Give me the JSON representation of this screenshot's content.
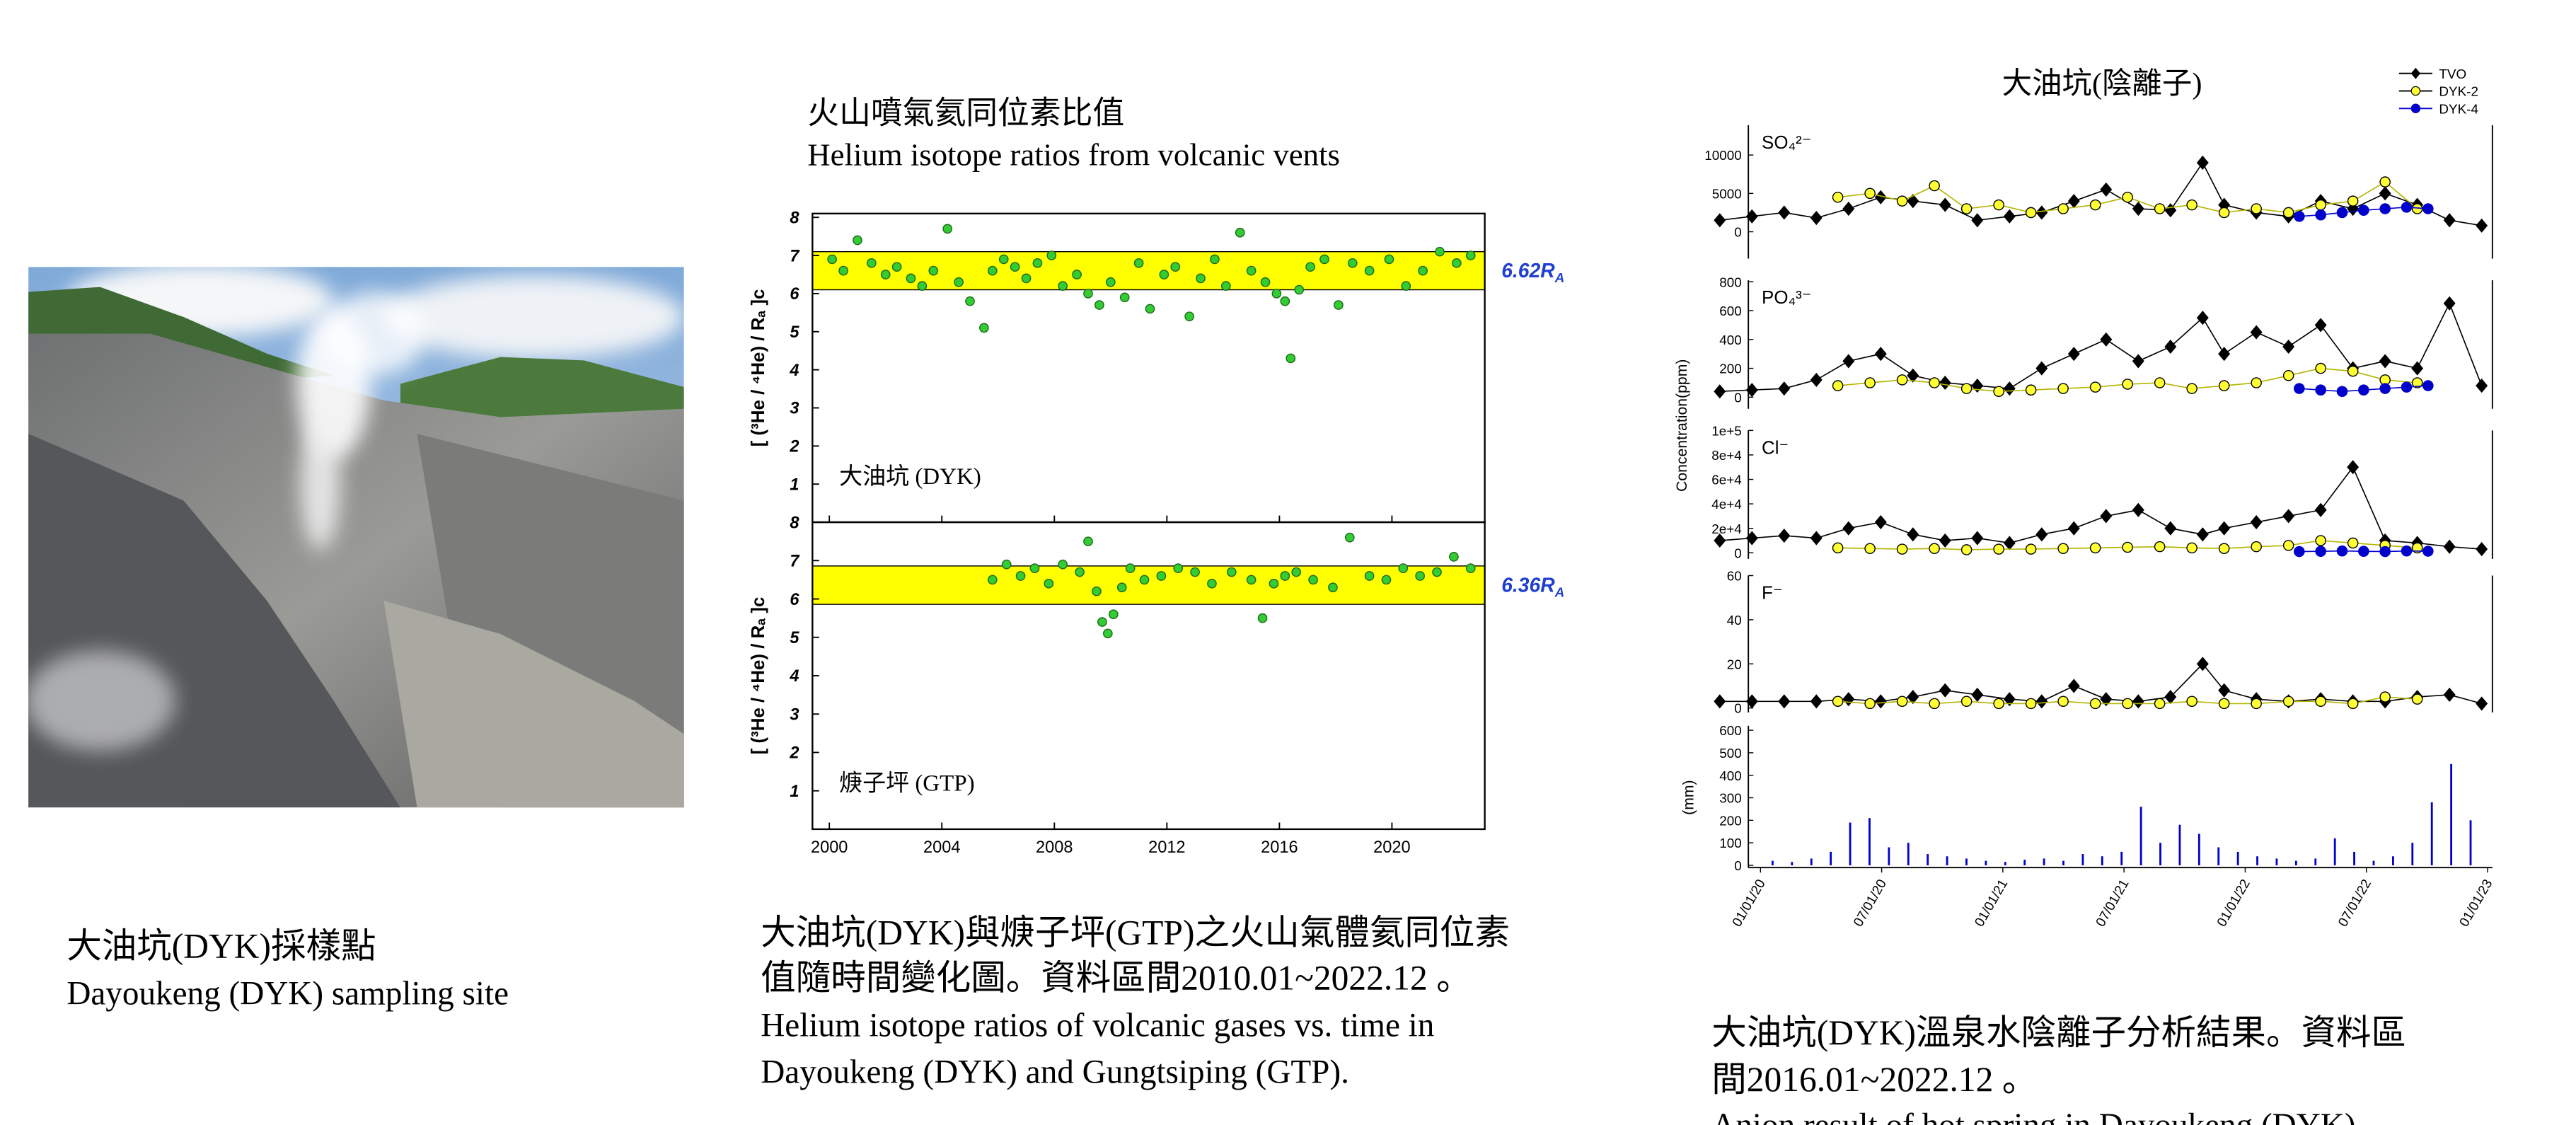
{
  "photo": {
    "caption": [
      "大油坑(DYK)採樣點",
      "Dayoukeng (DYK) sampling site"
    ]
  },
  "helium_caption": [
    "大油坑(DYK)與焿子坪(GTP)之火山氣體氦同位素",
    "值隨時間變化圖。資料區間2010.01~2022.12 。",
    "Helium isotope ratios of volcanic gases vs. time in",
    "Dayoukeng (DYK) and Gungtsiping (GTP)."
  ],
  "anion_caption": [
    "大油坑(DYK)溫泉水陰離子分析結果。資料區",
    "間2016.01~2022.12 。",
    "Anion result of hot spring in Dayoukeng (DYK) ."
  ],
  "chart_data": [
    {
      "type": "scatter",
      "title": "火山噴氣氦同位素比值",
      "subtitle": "Helium isotope ratios from volcanic vents",
      "ylabel": "[ (³He / ⁴He) / Rₐ ]c",
      "color": "#33cc33",
      "band_color": "#ffff00",
      "xlim": [
        1999.4,
        2023.3
      ],
      "xticks": [
        2000,
        2004,
        2008,
        2012,
        2016,
        2020
      ],
      "panels": [
        {
          "label": "大油坑 (DYK)",
          "ylim": [
            0,
            8.1
          ],
          "yticks": [
            1,
            2,
            3,
            4,
            5,
            6,
            7,
            8
          ],
          "band": [
            6.1,
            7.1
          ],
          "band_label": "6.62R",
          "band_label_sub": "A",
          "x": [
            2000.1,
            2000.5,
            2001.0,
            2001.5,
            2002.0,
            2002.4,
            2002.9,
            2003.3,
            2003.7,
            2004.2,
            2004.6,
            2005.0,
            2005.5,
            2005.8,
            2006.2,
            2006.6,
            2007.0,
            2007.4,
            2007.9,
            2008.3,
            2008.8,
            2009.2,
            2009.6,
            2010.0,
            2010.5,
            2011.0,
            2011.4,
            2011.9,
            2012.3,
            2012.8,
            2013.2,
            2013.7,
            2014.1,
            2014.6,
            2015.0,
            2015.5,
            2015.9,
            2016.2,
            2016.4,
            2016.7,
            2017.1,
            2017.6,
            2018.1,
            2018.6,
            2019.2,
            2019.9,
            2020.5,
            2021.1,
            2021.7,
            2022.3,
            2022.8
          ],
          "values": [
            6.9,
            6.6,
            7.4,
            6.8,
            6.5,
            6.7,
            6.4,
            6.2,
            6.6,
            7.7,
            6.3,
            5.8,
            5.1,
            6.6,
            6.9,
            6.7,
            6.4,
            6.8,
            7.0,
            6.2,
            6.5,
            6.0,
            5.7,
            6.3,
            5.9,
            6.8,
            5.6,
            6.5,
            6.7,
            5.4,
            6.4,
            6.9,
            6.2,
            7.6,
            6.6,
            6.3,
            6.0,
            5.8,
            4.3,
            6.1,
            6.7,
            6.9,
            5.7,
            6.8,
            6.6,
            6.9,
            6.2,
            6.6,
            7.1,
            6.8,
            7.0
          ]
        },
        {
          "label": "焿子坪 (GTP)",
          "ylim": [
            0,
            8
          ],
          "yticks": [
            1,
            2,
            3,
            4,
            5,
            6,
            7,
            8
          ],
          "band": [
            5.86,
            6.86
          ],
          "band_label": "6.36R",
          "band_label_sub": "A",
          "x": [
            2005.8,
            2006.3,
            2006.8,
            2007.3,
            2007.8,
            2008.3,
            2008.9,
            2009.2,
            2009.5,
            2009.7,
            2009.9,
            2010.1,
            2010.4,
            2010.7,
            2011.2,
            2011.8,
            2012.4,
            2013.0,
            2013.6,
            2014.3,
            2015.0,
            2015.4,
            2015.8,
            2016.2,
            2016.6,
            2017.2,
            2017.9,
            2018.5,
            2019.2,
            2019.8,
            2020.4,
            2021.0,
            2021.6,
            2022.2,
            2022.8
          ],
          "values": [
            6.5,
            6.9,
            6.6,
            6.8,
            6.4,
            6.9,
            6.7,
            7.5,
            6.2,
            5.4,
            5.1,
            5.6,
            6.3,
            6.8,
            6.5,
            6.6,
            6.8,
            6.7,
            6.4,
            6.7,
            6.5,
            5.5,
            6.4,
            6.6,
            6.7,
            6.5,
            6.3,
            7.6,
            6.6,
            6.5,
            6.8,
            6.6,
            6.7,
            7.1,
            6.8
          ]
        }
      ]
    },
    {
      "type": "scatter",
      "title": "大油坑(陰離子)",
      "ylabel": "Concentration(ppm)",
      "xlim": [
        2015.6,
        2023.0
      ],
      "series": [
        {
          "name": "TVO",
          "color": "#000000",
          "marker": "diamond"
        },
        {
          "name": "DYK-2",
          "color": "#ffff33",
          "marker": "circle"
        },
        {
          "name": "DYK-4",
          "color": "#0000cc",
          "marker": "circle"
        }
      ],
      "panels": [
        {
          "label": "SO₄²⁻",
          "ylim": [
            -3500,
            13900
          ],
          "yticks": [
            0,
            5000,
            10000
          ],
          "x": [
            [
              2015.8,
              2016.1,
              2016.4,
              2016.7,
              2017.0,
              2017.3,
              2017.6,
              2017.9,
              2018.2,
              2018.5,
              2018.8,
              2019.1,
              2019.4,
              2019.7,
              2020.0,
              2020.3,
              2020.5,
              2020.8,
              2021.1,
              2021.4,
              2021.7,
              2022.0,
              2022.3,
              2022.6,
              2022.9
            ],
            [
              2016.9,
              2017.2,
              2017.5,
              2017.8,
              2018.1,
              2018.4,
              2018.7,
              2019.0,
              2019.3,
              2019.6,
              2019.9,
              2020.2,
              2020.5,
              2020.8,
              2021.1,
              2021.4,
              2021.7,
              2022.0,
              2022.3
            ],
            [
              2021.2,
              2021.4,
              2021.6,
              2021.8,
              2022.0,
              2022.2,
              2022.4
            ]
          ],
          "values": [
            [
              1500,
              2000,
              2500,
              1800,
              3000,
              4500,
              4000,
              3500,
              1500,
              2000,
              2500,
              4000,
              5500,
              3000,
              2800,
              9000,
              3500,
              2500,
              2000,
              4000,
              3000,
              5000,
              3500,
              1500,
              800
            ],
            [
              4500,
              5000,
              4000,
              6000,
              3000,
              3500,
              2500,
              3000,
              3500,
              4500,
              3000,
              3500,
              2500,
              3000,
              2500,
              3500,
              4000,
              6500,
              3000
            ],
            [
              2000,
              2200,
              2500,
              2800,
              3000,
              3200,
              3000
            ]
          ]
        },
        {
          "label": "PO₄³⁻",
          "ylim": [
            -80,
            810
          ],
          "yticks": [
            0,
            200,
            400,
            600,
            800
          ],
          "x": [
            [
              2015.8,
              2016.1,
              2016.4,
              2016.7,
              2017.0,
              2017.3,
              2017.6,
              2017.9,
              2018.2,
              2018.5,
              2018.8,
              2019.1,
              2019.4,
              2019.7,
              2020.0,
              2020.3,
              2020.5,
              2020.8,
              2021.1,
              2021.4,
              2021.7,
              2022.0,
              2022.3,
              2022.6,
              2022.9
            ],
            [
              2016.9,
              2017.2,
              2017.5,
              2017.8,
              2018.1,
              2018.4,
              2018.7,
              2019.0,
              2019.3,
              2019.6,
              2019.9,
              2020.2,
              2020.5,
              2020.8,
              2021.1,
              2021.4,
              2021.7,
              2022.0,
              2022.3
            ],
            [
              2021.2,
              2021.4,
              2021.6,
              2021.8,
              2022.0,
              2022.2,
              2022.4
            ]
          ],
          "values": [
            [
              40,
              50,
              60,
              120,
              250,
              300,
              150,
              100,
              80,
              60,
              200,
              300,
              400,
              250,
              350,
              550,
              300,
              450,
              350,
              500,
              200,
              250,
              200,
              650,
              80
            ],
            [
              80,
              100,
              120,
              100,
              60,
              40,
              50,
              60,
              70,
              90,
              100,
              60,
              80,
              100,
              150,
              200,
              180,
              120,
              100
            ],
            [
              60,
              50,
              40,
              50,
              60,
              70,
              80
            ]
          ]
        },
        {
          "label": "Cl⁻",
          "ylim": [
            -5000,
            100000
          ],
          "yticks": [
            0,
            {
              "value": 20000,
              "label": "2e+4"
            },
            {
              "value": 40000,
              "label": "4e+4"
            },
            {
              "value": 60000,
              "label": "6e+4"
            },
            {
              "value": 80000,
              "label": "8e+4"
            },
            {
              "value": 100000,
              "label": "1e+5"
            }
          ],
          "x": [
            [
              2015.8,
              2016.1,
              2016.4,
              2016.7,
              2017.0,
              2017.3,
              2017.6,
              2017.9,
              2018.2,
              2018.5,
              2018.8,
              2019.1,
              2019.4,
              2019.7,
              2020.0,
              2020.3,
              2020.5,
              2020.8,
              2021.1,
              2021.4,
              2021.7,
              2022.0,
              2022.3,
              2022.6,
              2022.9
            ],
            [
              2016.9,
              2017.2,
              2017.5,
              2017.8,
              2018.1,
              2018.4,
              2018.7,
              2019.0,
              2019.3,
              2019.6,
              2019.9,
              2020.2,
              2020.5,
              2020.8,
              2021.1,
              2021.4,
              2021.7,
              2022.0,
              2022.3
            ],
            [
              2021.2,
              2021.4,
              2021.6,
              2021.8,
              2022.0,
              2022.2,
              2022.4
            ]
          ],
          "values": [
            [
              10000,
              12000,
              14000,
              12000,
              20000,
              25000,
              15000,
              10000,
              12000,
              8000,
              15000,
              20000,
              30000,
              35000,
              20000,
              15000,
              20000,
              25000,
              30000,
              35000,
              70000,
              10000,
              8000,
              5000,
              3000
            ],
            [
              4000,
              3500,
              3000,
              3500,
              2500,
              3000,
              3000,
              3500,
              4000,
              4500,
              5000,
              4000,
              3500,
              5000,
              6000,
              10000,
              8000,
              6000,
              4000
            ],
            [
              1000,
              1200,
              1500,
              1200,
              1000,
              1500,
              1300
            ]
          ]
        },
        {
          "label": "F⁻",
          "ylim": [
            -2,
            60
          ],
          "yticks": [
            0,
            20,
            40,
            60
          ],
          "x": [
            [
              2015.8,
              2016.1,
              2016.4,
              2016.7,
              2017.0,
              2017.3,
              2017.6,
              2017.9,
              2018.2,
              2018.5,
              2018.8,
              2019.1,
              2019.4,
              2019.7,
              2020.0,
              2020.3,
              2020.5,
              2020.8,
              2021.1,
              2021.4,
              2021.7,
              2022.0,
              2022.3,
              2022.6,
              2022.9
            ],
            [
              2016.9,
              2017.2,
              2017.5,
              2017.8,
              2018.1,
              2018.4,
              2018.7,
              2019.0,
              2019.3,
              2019.6,
              2019.9,
              2020.2,
              2020.5,
              2020.8,
              2021.1,
              2021.4,
              2021.7,
              2022.0,
              2022.3
            ],
            []
          ],
          "values": [
            [
              3,
              3,
              3,
              3,
              4,
              3,
              5,
              8,
              6,
              4,
              3,
              10,
              4,
              3,
              5,
              20,
              8,
              4,
              3,
              4,
              3,
              3,
              5,
              6,
              2
            ],
            [
              3,
              2,
              3,
              2,
              3,
              2,
              2,
              3,
              2,
              2,
              2,
              3,
              2,
              2,
              3,
              3,
              2,
              5,
              4
            ],
            []
          ]
        }
      ],
      "rain": {
        "type": "bar",
        "ylabel": "(mm)",
        "color": "#0000cc",
        "ylim": [
          -10,
          620
        ],
        "yticks": [
          0,
          100,
          200,
          300,
          400,
          500,
          600
        ],
        "xlim": [
          2019.95,
          2023.02
        ],
        "xticks": [
          {
            "value": 2020.0,
            "label": "01/01/20"
          },
          {
            "value": 2020.5,
            "label": "07/01/20"
          },
          {
            "value": 2021.0,
            "label": "01/01/21"
          },
          {
            "value": 2021.5,
            "label": "07/01/21"
          },
          {
            "value": 2022.0,
            "label": "01/01/22"
          },
          {
            "value": 2022.5,
            "label": "07/01/22"
          },
          {
            "value": 2023.0,
            "label": "01/01/23"
          }
        ],
        "x": [
          2020.05,
          2020.13,
          2020.21,
          2020.29,
          2020.37,
          2020.45,
          2020.53,
          2020.61,
          2020.69,
          2020.77,
          2020.85,
          2020.93,
          2021.01,
          2021.09,
          2021.17,
          2021.25,
          2021.33,
          2021.41,
          2021.49,
          2021.57,
          2021.65,
          2021.73,
          2021.81,
          2021.89,
          2021.97,
          2022.05,
          2022.13,
          2022.21,
          2022.29,
          2022.37,
          2022.45,
          2022.53,
          2022.61,
          2022.69,
          2022.77,
          2022.85,
          2022.93
        ],
        "values": [
          20,
          15,
          30,
          60,
          190,
          210,
          80,
          100,
          50,
          40,
          30,
          20,
          15,
          25,
          30,
          20,
          50,
          40,
          60,
          260,
          100,
          180,
          140,
          80,
          60,
          40,
          30,
          20,
          30,
          120,
          60,
          20,
          40,
          100,
          280,
          450,
          200
        ]
      }
    }
  ]
}
